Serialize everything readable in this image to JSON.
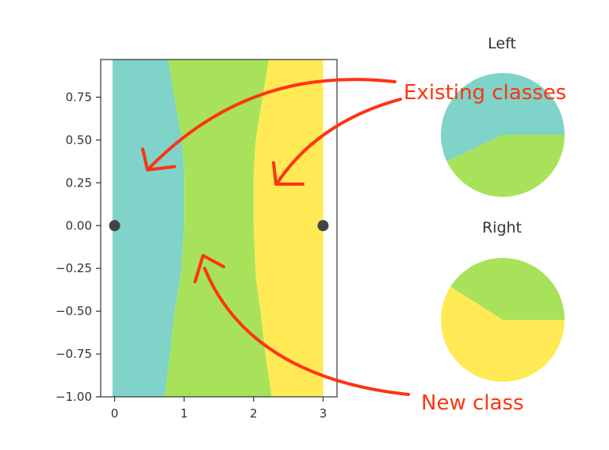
{
  "chart_data": [
    {
      "type": "area",
      "title": "",
      "xlabel": "",
      "ylabel": "",
      "xlim": [
        -0.2,
        3.2
      ],
      "ylim": [
        -1.0,
        0.97
      ],
      "x_ticks": [
        0,
        1,
        2,
        3
      ],
      "x_tick_labels": [
        "0",
        "1",
        "2",
        "3"
      ],
      "y_ticks": [
        0.75,
        0.5,
        0.25,
        0.0,
        -0.25,
        -0.5,
        -0.75,
        -1.0
      ],
      "y_tick_labels": [
        "0.75",
        "0.50",
        "0.25",
        "0.00",
        "−0.25",
        "−0.50",
        "−0.75",
        "−1.00"
      ],
      "grid": false,
      "region_colors": [
        "#7fd3c8",
        "#a8e25a",
        "#ffea55"
      ],
      "regions": [
        {
          "x_start": -0.03,
          "x_end": 3.0,
          "boundaries": [
            {
              "y": [
                0.97,
                0.75,
                0.5,
                0.3,
                0.0,
                -0.3,
                -0.5,
                -0.75,
                -1.0
              ],
              "x": [
                0.77,
                0.86,
                0.97,
                1.0,
                1.0,
                0.95,
                0.86,
                0.8,
                0.72
              ]
            },
            {
              "y": [
                0.97,
                0.75,
                0.5,
                0.3,
                0.0,
                -0.3,
                -0.5,
                -0.75,
                -1.0
              ],
              "x": [
                2.22,
                2.13,
                2.03,
                2.0,
                2.0,
                2.03,
                2.1,
                2.17,
                2.26
              ]
            }
          ]
        }
      ],
      "points": [
        {
          "x": 0,
          "y": 0
        },
        {
          "x": 3,
          "y": 0
        }
      ],
      "point_color": "#444444"
    },
    {
      "type": "pie",
      "title": "Left",
      "values": [
        0.57,
        0.43
      ],
      "colors": [
        "#7fd3c8",
        "#a8e25a"
      ]
    },
    {
      "type": "pie",
      "title": "Right",
      "values": [
        0.41,
        0.59
      ],
      "colors": [
        "#a8e25a",
        "#ffea55"
      ]
    }
  ],
  "annotations": {
    "existing": "Existing classes",
    "new": "New class",
    "color": "#ff3311"
  }
}
